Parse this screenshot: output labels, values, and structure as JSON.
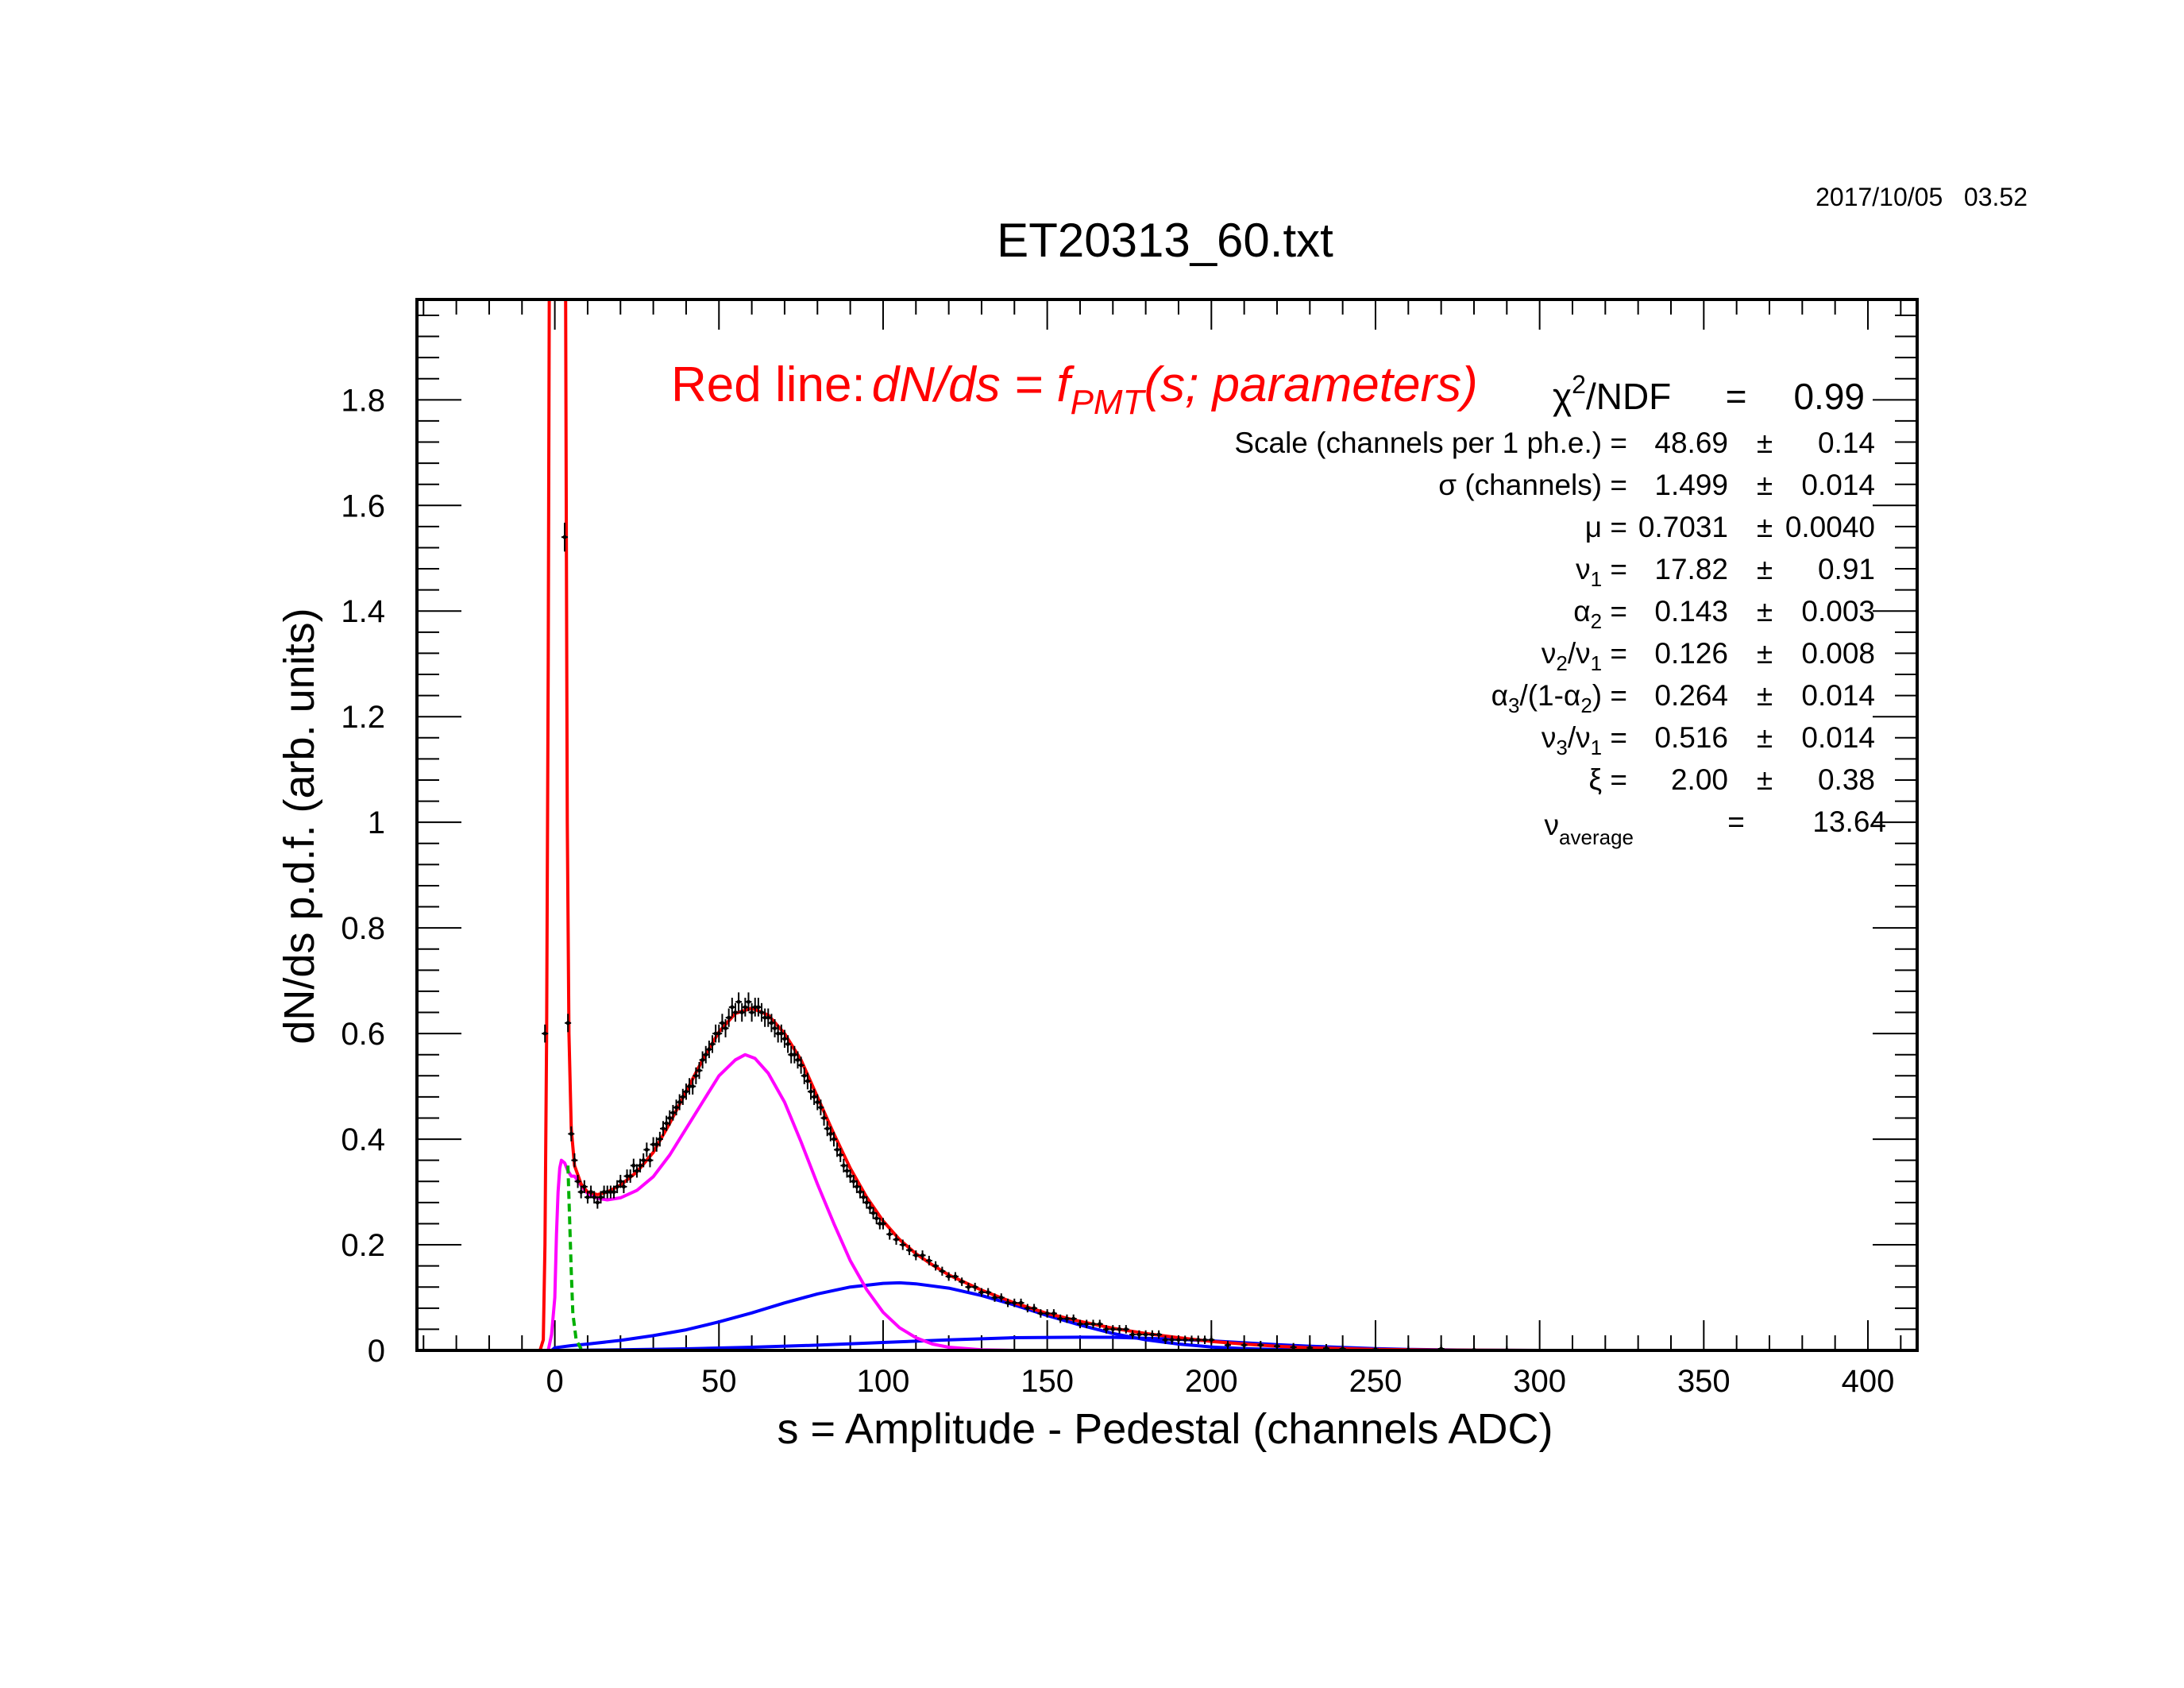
{
  "timestamp": "2017/10/05   03.52",
  "colors": {
    "fit": "#ff0000",
    "pedestal": "#00b000",
    "single_pe": "#ff00ff",
    "multi_pe": "#0000ff",
    "data": "#000000"
  },
  "chart_data": {
    "type": "line",
    "title": "ET20313_60.txt",
    "xlabel": "s = Amplitude - Pedestal (channels ADC)",
    "ylabel": "dN/ds p.d.f. (arb. units)",
    "xlim": [
      -42,
      415
    ],
    "ylim": [
      0,
      1.99
    ],
    "xticks": [
      0,
      50,
      100,
      150,
      200,
      250,
      300,
      350,
      400
    ],
    "yticks": [
      0,
      0.2,
      0.4,
      0.6,
      0.8,
      1,
      1.2,
      1.4,
      1.6,
      1.8
    ],
    "legend_text": {
      "main": "Red line:",
      "formula": "dN/ds = f",
      "sub": "PMT",
      "args": "(s; parameters)"
    },
    "fit_info": {
      "chi2": {
        "label": "χ",
        "sup": "2",
        "rest": "/NDF",
        "eq": "=",
        "value": "0.99"
      },
      "rows": [
        {
          "label": "Scale (channels per 1 ph.e.) =",
          "value": "48.69",
          "pm": "±",
          "err": "0.14"
        },
        {
          "label": "σ (channels) =",
          "value": "1.499",
          "pm": "±",
          "err": "0.014"
        },
        {
          "label": "μ  =",
          "value": "0.7031",
          "pm": "±",
          "err": "0.0040"
        },
        {
          "label": "ν",
          "sub": "1",
          "tail": " =",
          "value": "17.82",
          "pm": "±",
          "err": "0.91"
        },
        {
          "label": "α",
          "sub": "2",
          "tail": " =",
          "value": "0.143",
          "pm": "±",
          "err": "0.003"
        },
        {
          "label": "ν",
          "sub": "2",
          "tail": "/ν",
          "sub2": "1",
          "tail2": " =",
          "value": "0.126",
          "pm": "±",
          "err": "0.008"
        },
        {
          "label": "α",
          "sub": "3",
          "tail": "/(1-α",
          "sub2": "2",
          "tail2": ") =",
          "value": "0.264",
          "pm": "±",
          "err": "0.014"
        },
        {
          "label": "ν",
          "sub": "3",
          "tail": "/ν",
          "sub2": "1",
          "tail2": " =",
          "value": "0.516",
          "pm": "±",
          "err": "0.014"
        },
        {
          "label": "ξ  =",
          "value": "2.00",
          "pm": "±",
          "err": "0.38"
        }
      ],
      "average": {
        "label": "ν",
        "sub": "average",
        "eq": "=",
        "value": "13.64"
      }
    },
    "series": [
      {
        "style": "line",
        "color": "#ff0000",
        "points": [
          [
            -4.5,
            0
          ],
          [
            -3.5,
            0.02
          ],
          [
            -3,
            0.2
          ],
          [
            -2.5,
            0.6
          ],
          [
            -2,
            1.3
          ],
          [
            -1.6,
            2.2
          ],
          [
            3.2,
            2.2
          ],
          [
            3.5,
            1.55
          ],
          [
            3.8,
            1.0
          ],
          [
            4.3,
            0.6
          ],
          [
            5,
            0.42
          ],
          [
            6,
            0.35
          ],
          [
            8,
            0.315
          ],
          [
            10,
            0.3
          ],
          [
            13,
            0.295
          ],
          [
            16,
            0.3
          ],
          [
            20,
            0.313
          ],
          [
            25,
            0.338
          ],
          [
            30,
            0.375
          ],
          [
            35,
            0.43
          ],
          [
            40,
            0.49
          ],
          [
            45,
            0.55
          ],
          [
            50,
            0.603
          ],
          [
            55,
            0.638
          ],
          [
            60,
            0.648
          ],
          [
            65,
            0.635
          ],
          [
            70,
            0.6
          ],
          [
            75,
            0.55
          ],
          [
            80,
            0.48
          ],
          [
            85,
            0.41
          ],
          [
            90,
            0.345
          ],
          [
            95,
            0.29
          ],
          [
            100,
            0.245
          ],
          [
            105,
            0.21
          ],
          [
            110,
            0.183
          ],
          [
            115,
            0.162
          ],
          [
            120,
            0.143
          ],
          [
            130,
            0.114
          ],
          [
            140,
            0.09
          ],
          [
            150,
            0.07
          ],
          [
            160,
            0.055
          ],
          [
            170,
            0.042
          ],
          [
            180,
            0.032
          ],
          [
            190,
            0.024
          ],
          [
            200,
            0.017
          ],
          [
            210,
            0.012
          ],
          [
            220,
            0.008
          ],
          [
            230,
            0.005
          ],
          [
            250,
            0.002
          ],
          [
            270,
            0.0006
          ],
          [
            300,
            0
          ]
        ]
      },
      {
        "style": "dashed",
        "color": "#00b000",
        "points": [
          [
            4,
            0.35
          ],
          [
            4.5,
            0.25
          ],
          [
            5,
            0.15
          ],
          [
            5.5,
            0.07
          ],
          [
            6.5,
            0.02
          ],
          [
            8,
            0.003
          ],
          [
            10,
            0
          ],
          [
            300,
            0
          ]
        ]
      },
      {
        "style": "line",
        "color": "#ff00ff",
        "points": [
          [
            -2,
            0
          ],
          [
            -1,
            0.03
          ],
          [
            0,
            0.1
          ],
          [
            0.5,
            0.22
          ],
          [
            1,
            0.3
          ],
          [
            1.5,
            0.345
          ],
          [
            2,
            0.36
          ],
          [
            3,
            0.355
          ],
          [
            4,
            0.34
          ],
          [
            5,
            0.33
          ],
          [
            6,
            0.33
          ],
          [
            8,
            0.312
          ],
          [
            10,
            0.297
          ],
          [
            13,
            0.288
          ],
          [
            16,
            0.285
          ],
          [
            20,
            0.289
          ],
          [
            25,
            0.303
          ],
          [
            30,
            0.329
          ],
          [
            35,
            0.37
          ],
          [
            40,
            0.42
          ],
          [
            45,
            0.47
          ],
          [
            50,
            0.52
          ],
          [
            55,
            0.55
          ],
          [
            58,
            0.56
          ],
          [
            61,
            0.553
          ],
          [
            65,
            0.525
          ],
          [
            70,
            0.47
          ],
          [
            75,
            0.395
          ],
          [
            80,
            0.315
          ],
          [
            85,
            0.24
          ],
          [
            90,
            0.17
          ],
          [
            95,
            0.115
          ],
          [
            100,
            0.072
          ],
          [
            105,
            0.043
          ],
          [
            110,
            0.024
          ],
          [
            115,
            0.012
          ],
          [
            120,
            0.006
          ],
          [
            130,
            0.001
          ],
          [
            140,
            0
          ]
        ]
      },
      {
        "style": "line",
        "color": "#0000ff",
        "points": [
          [
            -1,
            0
          ],
          [
            0,
            0.005
          ],
          [
            5,
            0.009
          ],
          [
            10,
            0.012
          ],
          [
            20,
            0.019
          ],
          [
            30,
            0.028
          ],
          [
            40,
            0.039
          ],
          [
            50,
            0.054
          ],
          [
            60,
            0.071
          ],
          [
            70,
            0.09
          ],
          [
            80,
            0.107
          ],
          [
            90,
            0.12
          ],
          [
            100,
            0.127
          ],
          [
            105,
            0.128
          ],
          [
            110,
            0.126
          ],
          [
            120,
            0.118
          ],
          [
            130,
            0.104
          ],
          [
            140,
            0.086
          ],
          [
            150,
            0.066
          ],
          [
            160,
            0.048
          ],
          [
            170,
            0.032
          ],
          [
            180,
            0.02
          ],
          [
            190,
            0.012
          ],
          [
            200,
            0.0065
          ],
          [
            210,
            0.0035
          ],
          [
            220,
            0.0017
          ],
          [
            240,
            0.0004
          ],
          [
            260,
            0
          ]
        ]
      },
      {
        "style": "line",
        "color": "#0000ff",
        "points": [
          [
            0,
            0
          ],
          [
            20,
            0.001
          ],
          [
            40,
            0.003
          ],
          [
            60,
            0.006
          ],
          [
            80,
            0.01
          ],
          [
            100,
            0.015
          ],
          [
            120,
            0.02
          ],
          [
            140,
            0.024
          ],
          [
            160,
            0.025
          ],
          [
            170,
            0.0248
          ],
          [
            180,
            0.023
          ],
          [
            190,
            0.021
          ],
          [
            200,
            0.018
          ],
          [
            210,
            0.0145
          ],
          [
            220,
            0.011
          ],
          [
            230,
            0.008
          ],
          [
            240,
            0.0055
          ],
          [
            250,
            0.0035
          ],
          [
            260,
            0.002
          ],
          [
            270,
            0.001
          ],
          [
            280,
            0.0005
          ],
          [
            300,
            0
          ]
        ]
      }
    ],
    "data_points": [
      [
        -3,
        0.6
      ],
      [
        3,
        1.54
      ],
      [
        4,
        0.62
      ],
      [
        5,
        0.41
      ],
      [
        6,
        0.36
      ],
      [
        7,
        0.32
      ],
      [
        8,
        0.3
      ],
      [
        9,
        0.31
      ],
      [
        10,
        0.29
      ],
      [
        11,
        0.3
      ],
      [
        12,
        0.29
      ],
      [
        13,
        0.28
      ],
      [
        14,
        0.29
      ],
      [
        15,
        0.3
      ],
      [
        16,
        0.3
      ],
      [
        17,
        0.3
      ],
      [
        18,
        0.3
      ],
      [
        19,
        0.31
      ],
      [
        20,
        0.32
      ],
      [
        21,
        0.31
      ],
      [
        22,
        0.33
      ],
      [
        23,
        0.33
      ],
      [
        24,
        0.35
      ],
      [
        25,
        0.34
      ],
      [
        26,
        0.35
      ],
      [
        27,
        0.36
      ],
      [
        28,
        0.38
      ],
      [
        29,
        0.36
      ],
      [
        30,
        0.39
      ],
      [
        31,
        0.39
      ],
      [
        32,
        0.4
      ],
      [
        33,
        0.42
      ],
      [
        34,
        0.43
      ],
      [
        35,
        0.44
      ],
      [
        36,
        0.45
      ],
      [
        37,
        0.46
      ],
      [
        38,
        0.47
      ],
      [
        39,
        0.48
      ],
      [
        40,
        0.49
      ],
      [
        41,
        0.5
      ],
      [
        42,
        0.5
      ],
      [
        43,
        0.52
      ],
      [
        44,
        0.53
      ],
      [
        45,
        0.55
      ],
      [
        46,
        0.56
      ],
      [
        47,
        0.57
      ],
      [
        48,
        0.58
      ],
      [
        49,
        0.6
      ],
      [
        50,
        0.6
      ],
      [
        51,
        0.62
      ],
      [
        52,
        0.61
      ],
      [
        53,
        0.63
      ],
      [
        54,
        0.65
      ],
      [
        55,
        0.64
      ],
      [
        56,
        0.66
      ],
      [
        57,
        0.64
      ],
      [
        58,
        0.65
      ],
      [
        59,
        0.66
      ],
      [
        60,
        0.64
      ],
      [
        61,
        0.65
      ],
      [
        62,
        0.65
      ],
      [
        63,
        0.64
      ],
      [
        64,
        0.63
      ],
      [
        65,
        0.63
      ],
      [
        66,
        0.62
      ],
      [
        67,
        0.61
      ],
      [
        68,
        0.6
      ],
      [
        69,
        0.6
      ],
      [
        70,
        0.59
      ],
      [
        71,
        0.58
      ],
      [
        72,
        0.56
      ],
      [
        73,
        0.56
      ],
      [
        74,
        0.55
      ],
      [
        75,
        0.54
      ],
      [
        76,
        0.52
      ],
      [
        77,
        0.51
      ],
      [
        78,
        0.49
      ],
      [
        79,
        0.48
      ],
      [
        80,
        0.47
      ],
      [
        81,
        0.46
      ],
      [
        82,
        0.44
      ],
      [
        83,
        0.42
      ],
      [
        84,
        0.41
      ],
      [
        85,
        0.4
      ],
      [
        86,
        0.38
      ],
      [
        87,
        0.37
      ],
      [
        88,
        0.35
      ],
      [
        89,
        0.34
      ],
      [
        90,
        0.33
      ],
      [
        91,
        0.32
      ],
      [
        92,
        0.31
      ],
      [
        93,
        0.3
      ],
      [
        94,
        0.29
      ],
      [
        95,
        0.28
      ],
      [
        96,
        0.27
      ],
      [
        97,
        0.26
      ],
      [
        98,
        0.25
      ],
      [
        99,
        0.24
      ],
      [
        100,
        0.24
      ],
      [
        102,
        0.22
      ],
      [
        104,
        0.21
      ],
      [
        106,
        0.2
      ],
      [
        108,
        0.19
      ],
      [
        110,
        0.18
      ],
      [
        112,
        0.18
      ],
      [
        114,
        0.17
      ],
      [
        116,
        0.16
      ],
      [
        118,
        0.15
      ],
      [
        120,
        0.14
      ],
      [
        122,
        0.14
      ],
      [
        124,
        0.13
      ],
      [
        126,
        0.12
      ],
      [
        128,
        0.12
      ],
      [
        130,
        0.11
      ],
      [
        132,
        0.11
      ],
      [
        134,
        0.1
      ],
      [
        136,
        0.1
      ],
      [
        138,
        0.09
      ],
      [
        140,
        0.09
      ],
      [
        142,
        0.09
      ],
      [
        144,
        0.08
      ],
      [
        146,
        0.08
      ],
      [
        148,
        0.07
      ],
      [
        150,
        0.07
      ],
      [
        152,
        0.07
      ],
      [
        154,
        0.06
      ],
      [
        156,
        0.06
      ],
      [
        158,
        0.06
      ],
      [
        160,
        0.05
      ],
      [
        162,
        0.05
      ],
      [
        164,
        0.05
      ],
      [
        166,
        0.05
      ],
      [
        168,
        0.04
      ],
      [
        170,
        0.04
      ],
      [
        172,
        0.04
      ],
      [
        174,
        0.04
      ],
      [
        176,
        0.03
      ],
      [
        178,
        0.03
      ],
      [
        180,
        0.03
      ],
      [
        182,
        0.03
      ],
      [
        184,
        0.03
      ],
      [
        186,
        0.02
      ],
      [
        188,
        0.02
      ],
      [
        190,
        0.02
      ],
      [
        192,
        0.02
      ],
      [
        194,
        0.02
      ],
      [
        196,
        0.02
      ],
      [
        198,
        0.02
      ],
      [
        200,
        0.02
      ],
      [
        205,
        0.01
      ],
      [
        210,
        0.01
      ],
      [
        215,
        0.01
      ],
      [
        220,
        0.008
      ],
      [
        225,
        0.006
      ],
      [
        230,
        0.005
      ],
      [
        235,
        0.004
      ],
      [
        240,
        0.003
      ],
      [
        250,
        0.002
      ],
      [
        260,
        0.001
      ],
      [
        270,
        0.003
      ],
      [
        280,
        0.001
      ],
      [
        290,
        0.0005
      ]
    ]
  }
}
